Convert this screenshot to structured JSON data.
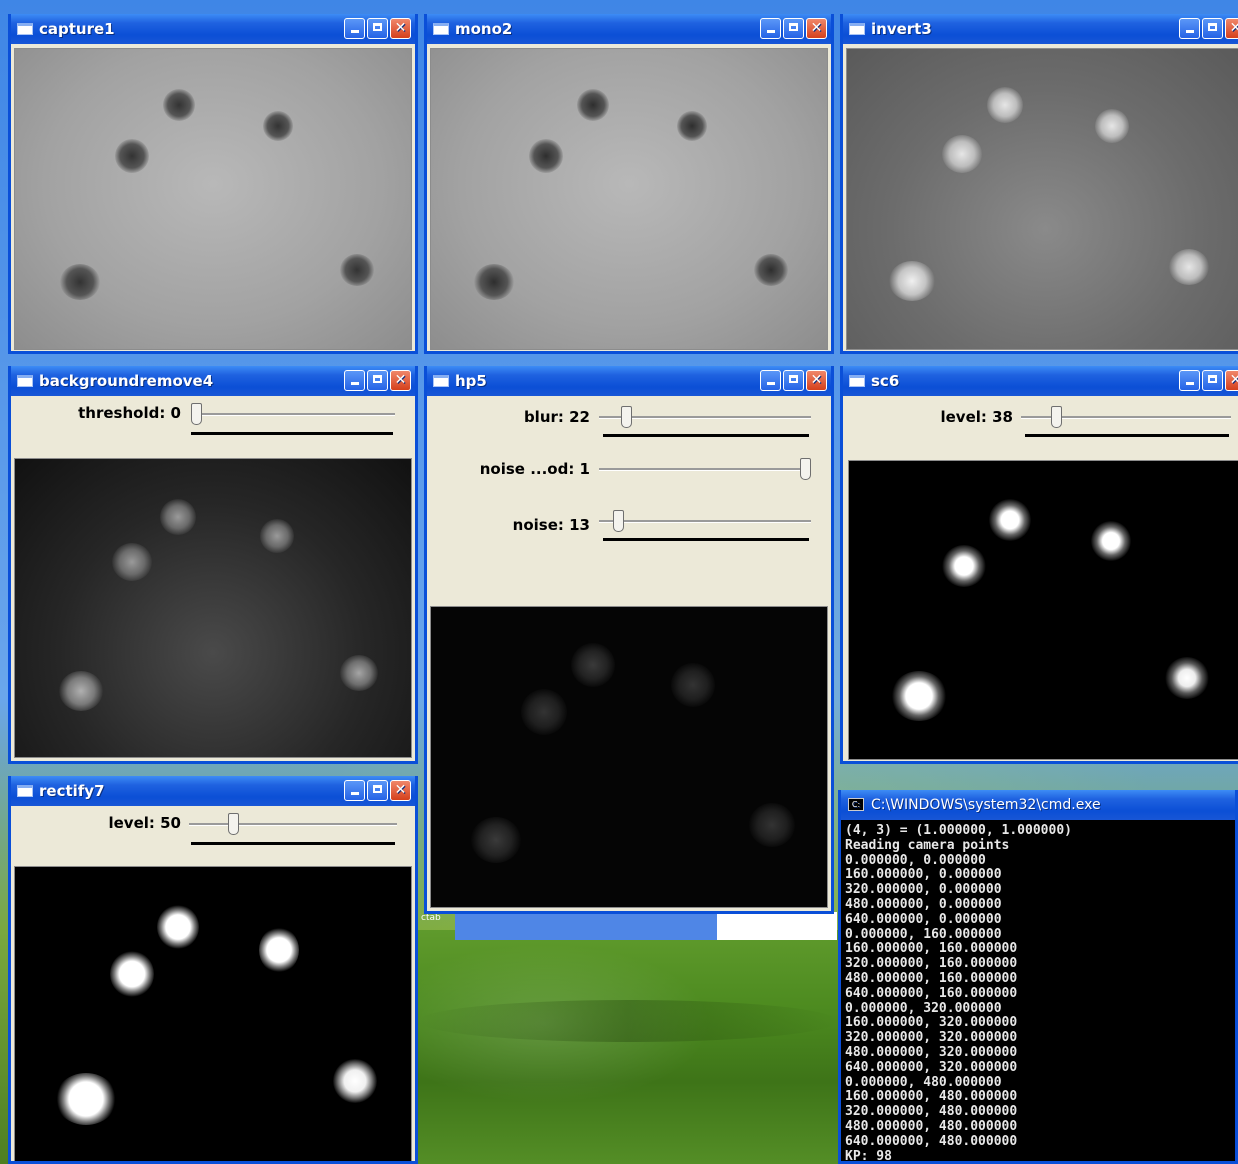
{
  "windows": {
    "capture": {
      "title": "capture1"
    },
    "mono": {
      "title": "mono2"
    },
    "invert": {
      "title": "invert3"
    },
    "backgroundremove": {
      "title": "backgroundremove4",
      "sliders": [
        {
          "label": "threshold: 0",
          "value_fraction": 0.0
        }
      ]
    },
    "hp": {
      "title": "hp5",
      "sliders": [
        {
          "label": "blur: 22",
          "value_fraction": 0.11
        },
        {
          "label": "noise ...od: 1",
          "value_fraction": 1.0
        },
        {
          "label": "noise: 13",
          "value_fraction": 0.07
        }
      ]
    },
    "sc": {
      "title": "sc6",
      "sliders": [
        {
          "label": "level: 38",
          "value_fraction": 0.15
        }
      ]
    },
    "rectify": {
      "title": "rectify7",
      "sliders": [
        {
          "label": "level: 50",
          "value_fraction": 0.2
        }
      ]
    }
  },
  "console": {
    "title": "C:\\WINDOWS\\system32\\cmd.exe",
    "lines": [
      "(4, 3) = (1.000000, 1.000000)",
      "Reading camera points",
      "0.000000, 0.000000",
      "160.000000, 0.000000",
      "320.000000, 0.000000",
      "480.000000, 0.000000",
      "640.000000, 0.000000",
      "0.000000, 160.000000",
      "160.000000, 160.000000",
      "320.000000, 160.000000",
      "480.000000, 160.000000",
      "640.000000, 160.000000",
      "0.000000, 320.000000",
      "160.000000, 320.000000",
      "320.000000, 320.000000",
      "480.000000, 320.000000",
      "640.000000, 320.000000",
      "0.000000, 480.000000",
      "160.000000, 480.000000",
      "320.000000, 480.000000",
      "480.000000, 480.000000",
      "640.000000, 480.000000",
      "KP: 98"
    ]
  },
  "desktop_fragment": "ctab",
  "colors": {
    "title_bar": "#0b4fd6",
    "window_face": "#ece9d8",
    "close_button": "#d5401c"
  }
}
